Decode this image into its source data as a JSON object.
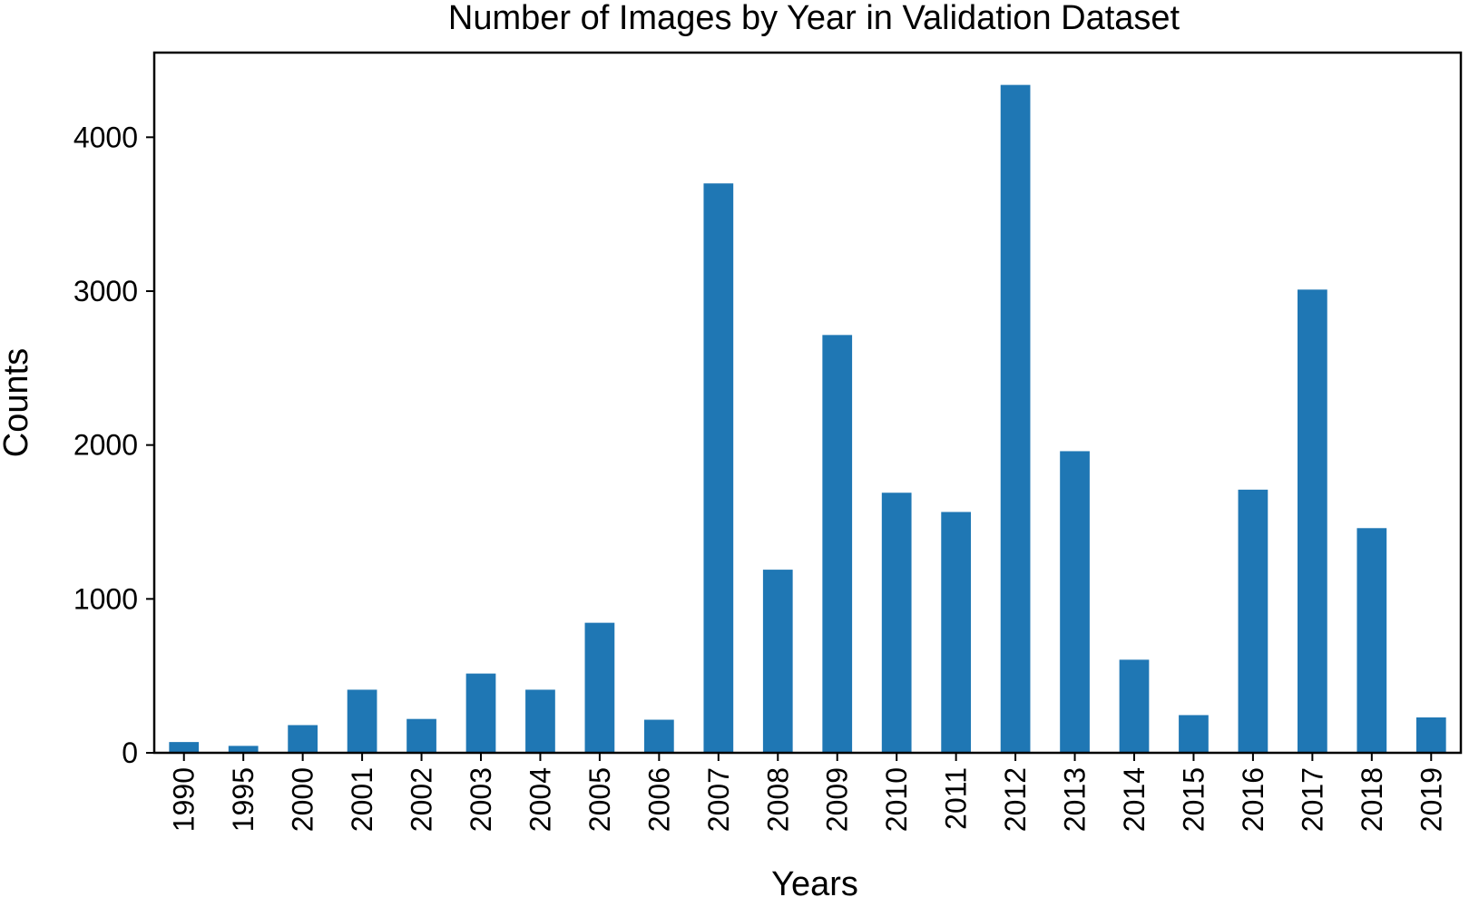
{
  "chart_data": {
    "type": "bar",
    "title": "Number of Images by Year in Validation Dataset",
    "xlabel": "Years",
    "ylabel": "Counts",
    "categories": [
      "1990",
      "1995",
      "2000",
      "2001",
      "2002",
      "2003",
      "2004",
      "2005",
      "2006",
      "2007",
      "2008",
      "2009",
      "2010",
      "2011",
      "2012",
      "2013",
      "2014",
      "2015",
      "2016",
      "2017",
      "2018",
      "2019"
    ],
    "values": [
      70,
      45,
      180,
      410,
      220,
      515,
      410,
      845,
      215,
      3700,
      1190,
      2715,
      1690,
      1565,
      4340,
      1960,
      605,
      245,
      1710,
      3010,
      1460,
      230
    ],
    "ylim": [
      0,
      4550
    ],
    "yticks": [
      0,
      1000,
      2000,
      3000,
      4000
    ],
    "ytick_labels": [
      "0",
      "1000",
      "2000",
      "3000",
      "4000"
    ],
    "bar_color": "#1f77b4",
    "grid": false,
    "legend": false
  }
}
